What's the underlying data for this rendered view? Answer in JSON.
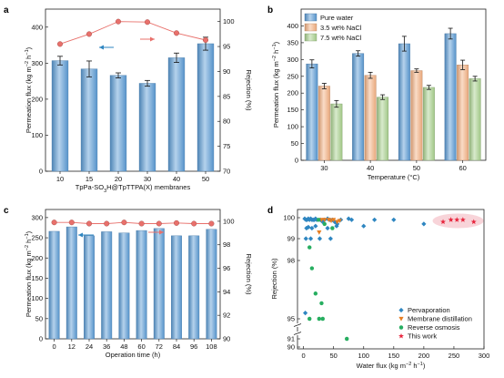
{
  "chart_data": [
    {
      "panel": "a",
      "type": "bar",
      "categories": [
        "10",
        "15",
        "20",
        "30",
        "40",
        "50"
      ],
      "xlabel_parts": [
        "TpPa-SO",
        "3",
        "H@TpTTPA(X) membranes"
      ],
      "ylabel_parts": [
        "Permeation flux (kg m",
        "−2",
        " h",
        "−1",
        ")"
      ],
      "y2label": "Rejection (%)",
      "ylim": [
        0,
        450
      ],
      "yticks": [
        0,
        100,
        200,
        300,
        400
      ],
      "y2lim": [
        70,
        102.5
      ],
      "y2ticks": [
        70,
        75,
        80,
        85,
        90,
        95,
        100
      ],
      "series": [
        {
          "kind": "bar",
          "axis": "left",
          "values": [
            307,
            284,
            266,
            244,
            315,
            354
          ],
          "errors": [
            12,
            22,
            7,
            8,
            13,
            18
          ],
          "color": "#5b9bd5"
        },
        {
          "kind": "line",
          "axis": "right",
          "values": [
            95.5,
            97.5,
            100,
            99.9,
            97.7,
            96.3
          ],
          "color": "#e8706b"
        }
      ]
    },
    {
      "panel": "b",
      "type": "bar",
      "categories": [
        "30",
        "40",
        "50",
        "60"
      ],
      "xlabel": "Temperature (°C)",
      "ylabel_parts": [
        "Permeation flux (kg m",
        "−2",
        " h",
        "−1",
        ")"
      ],
      "ylim": [
        0,
        450
      ],
      "yticks": [
        0,
        50,
        100,
        150,
        200,
        250,
        300,
        350,
        400
      ],
      "legend": "top-left",
      "series": [
        {
          "name": "Pure water",
          "values": [
            287,
            318,
            347,
            377
          ],
          "errors": [
            12,
            8,
            22,
            16
          ],
          "color": "#5b9bd5"
        },
        {
          "name": "3.5 wt% NaCl",
          "values": [
            221,
            253,
            267,
            284
          ],
          "errors": [
            8,
            9,
            5,
            14
          ],
          "color": "#f4b183"
        },
        {
          "name": "7.5 wt% NaCl",
          "values": [
            168,
            188,
            217,
            243
          ],
          "errors": [
            10,
            7,
            6,
            7
          ],
          "color": "#a9d18e"
        }
      ]
    },
    {
      "panel": "c",
      "type": "bar",
      "categories": [
        "0",
        "12",
        "24",
        "36",
        "48",
        "60",
        "72",
        "84",
        "96",
        "108"
      ],
      "xlabel": "Operation time (h)",
      "ylabel_parts": [
        "Permeation flux (kg m",
        "−2",
        " h",
        "−1",
        ")"
      ],
      "y2label": "Rejection (%)",
      "ylim": [
        0,
        320
      ],
      "yticks": [
        0,
        50,
        100,
        150,
        200,
        250,
        300
      ],
      "y2lim": [
        90,
        101
      ],
      "y2ticks": [
        90,
        92,
        94,
        96,
        98,
        100
      ],
      "series": [
        {
          "kind": "bar",
          "axis": "left",
          "values": [
            266,
            277,
            255,
            265,
            262,
            268,
            273,
            255,
            255,
            271
          ],
          "color": "#5b9bd5"
        },
        {
          "kind": "line",
          "axis": "right",
          "values": [
            99.9,
            99.9,
            99.8,
            99.8,
            99.9,
            99.8,
            99.8,
            99.85,
            99.8,
            99.8
          ],
          "color": "#e8706b"
        }
      ]
    },
    {
      "panel": "d",
      "type": "scatter",
      "xlabel_parts": [
        "Water flux (kg m",
        "−2",
        " h",
        "−1",
        ")"
      ],
      "ylabel": "Rejection (%)",
      "xlim": [
        -10,
        300
      ],
      "xticks": [
        0,
        50,
        100,
        150,
        200,
        250,
        300
      ],
      "yticks": [
        90,
        91,
        95,
        98,
        99,
        100
      ],
      "y_scale": "broken",
      "legend": "bottom-right",
      "series": [
        {
          "name": "Pervaporation",
          "color": "#2e86c1",
          "marker": "diamond",
          "points": [
            [
              2,
              99.95
            ],
            [
              4,
              99.9
            ],
            [
              6,
              99.9
            ],
            [
              8,
              99.95
            ],
            [
              10,
              99.9
            ],
            [
              12,
              99.95
            ],
            [
              14,
              99.9
            ],
            [
              16,
              99.9
            ],
            [
              18,
              99.9
            ],
            [
              20,
              99.95
            ],
            [
              22,
              99.9
            ],
            [
              28,
              99.9
            ],
            [
              32,
              99.8
            ],
            [
              35,
              99.9
            ],
            [
              40,
              99.95
            ],
            [
              44,
              99.9
            ],
            [
              48,
              99.9
            ],
            [
              52,
              99.8
            ],
            [
              56,
              99.7
            ],
            [
              62,
              99.9
            ],
            [
              75,
              99.95
            ],
            [
              80,
              99.9
            ],
            [
              100,
              99.6
            ],
            [
              118,
              99.9
            ],
            [
              150,
              99.9
            ],
            [
              200,
              99.7
            ],
            [
              5,
              99.5
            ],
            [
              8,
              99.55
            ],
            [
              14,
              99.5
            ],
            [
              20,
              99.6
            ],
            [
              40,
              99.5
            ],
            [
              55,
              99.6
            ],
            [
              4,
              99.0
            ],
            [
              12,
              99.0
            ],
            [
              27,
              99.0
            ],
            [
              45,
              99.0
            ],
            [
              3,
              95.3
            ]
          ]
        },
        {
          "name": "Membrane distillation",
          "color": "#e67e22",
          "marker": "triangle",
          "points": [
            [
              30,
              99.9
            ],
            [
              35,
              99.9
            ],
            [
              42,
              99.9
            ],
            [
              46,
              99.85
            ],
            [
              50,
              99.9
            ],
            [
              56,
              99.8
            ],
            [
              60,
              99.85
            ],
            [
              26,
              99.3
            ]
          ]
        },
        {
          "name": "Reverse osmosis",
          "color": "#27ae60",
          "marker": "circle",
          "points": [
            [
              25,
              99.9
            ],
            [
              35,
              99.7
            ],
            [
              48,
              99.5
            ],
            [
              10,
              98.6
            ],
            [
              14,
              97.6
            ],
            [
              20,
              96.3
            ],
            [
              30,
              95.8
            ],
            [
              26,
              95.0
            ],
            [
              32,
              95.0
            ],
            [
              10,
              95.0
            ],
            [
              72,
              91.0
            ]
          ]
        },
        {
          "name": "This work",
          "color": "#e8243c",
          "marker": "star",
          "points": [
            [
              232,
              99.8
            ],
            [
              245,
              99.9
            ],
            [
              255,
              99.9
            ],
            [
              265,
              99.9
            ],
            [
              283,
              99.8
            ]
          ]
        }
      ]
    }
  ]
}
